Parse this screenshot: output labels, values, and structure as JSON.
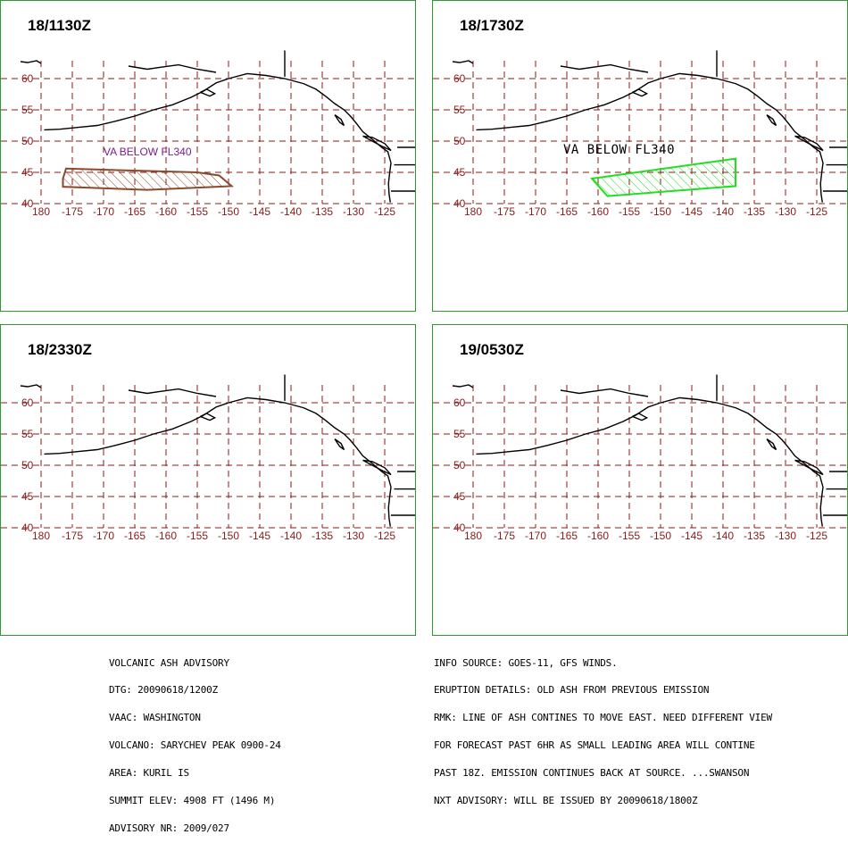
{
  "panels": [
    {
      "time": "18/1130Z",
      "ash_label": "VA BELOW FL340"
    },
    {
      "time": "18/1730Z",
      "ash_label": "VA BELOW FL340"
    },
    {
      "time": "18/2330Z",
      "ash_label": ""
    },
    {
      "time": "19/0530Z",
      "ash_label": ""
    }
  ],
  "map": {
    "lat_labels": [
      "60",
      "55",
      "50",
      "45",
      "40"
    ],
    "lon_labels": [
      "180",
      "-175",
      "-170",
      "-165",
      "-160",
      "-155",
      "-150",
      "-145",
      "-140",
      "-135",
      "-130",
      "-125"
    ],
    "lat_values": [
      60,
      55,
      50,
      45,
      40
    ],
    "lon_values": [
      180,
      -175,
      -170,
      -165,
      -160,
      -155,
      -150,
      -145,
      -140,
      -135,
      -130,
      -125
    ],
    "grid_color": "#8b1a1a",
    "label_color": "#8b1a1a"
  },
  "ash_areas": [
    {
      "panel": 0,
      "color": "#8b4a2b",
      "polygon_lonlat": [
        [
          -176.5,
          44.0
        ],
        [
          -176.0,
          45.6
        ],
        [
          -155.0,
          45.0
        ],
        [
          -151.5,
          44.5
        ],
        [
          -149.5,
          42.8
        ],
        [
          -163.0,
          42.2
        ],
        [
          -176.5,
          42.7
        ]
      ]
    },
    {
      "panel": 1,
      "color": "#22dd22",
      "polygon_lonlat": [
        [
          -161.0,
          44.0
        ],
        [
          -138.0,
          47.2
        ],
        [
          -138.0,
          42.8
        ],
        [
          -158.5,
          41.2
        ]
      ]
    }
  ],
  "advisory_left": [
    "VOLCANIC ASH ADVISORY",
    "DTG: 20090618/1200Z",
    "VAAC: WASHINGTON",
    "VOLCANO: SARYCHEV PEAK 0900-24",
    "AREA: KURIL IS",
    "SUMMIT ELEV: 4908 FT (1496 M)",
    "ADVISORY NR: 2009/027"
  ],
  "advisory_right": [
    "INFO SOURCE: GOES-11, GFS WINDS.",
    "ERUPTION DETAILS: OLD ASH FROM PREVIOUS EMISSION",
    "RMK: LINE OF ASH CONTINES TO MOVE EAST. NEED DIFFERENT VIEW",
    "FOR FORECAST PAST 6HR AS SMALL LEADING AREA WILL CONTINE",
    "PAST 18Z. EMISSION CONTINUES BACK AT SOURCE. ...SWANSON",
    "NXT ADVISORY: WILL BE ISSUED BY 20090618/1800Z"
  ]
}
